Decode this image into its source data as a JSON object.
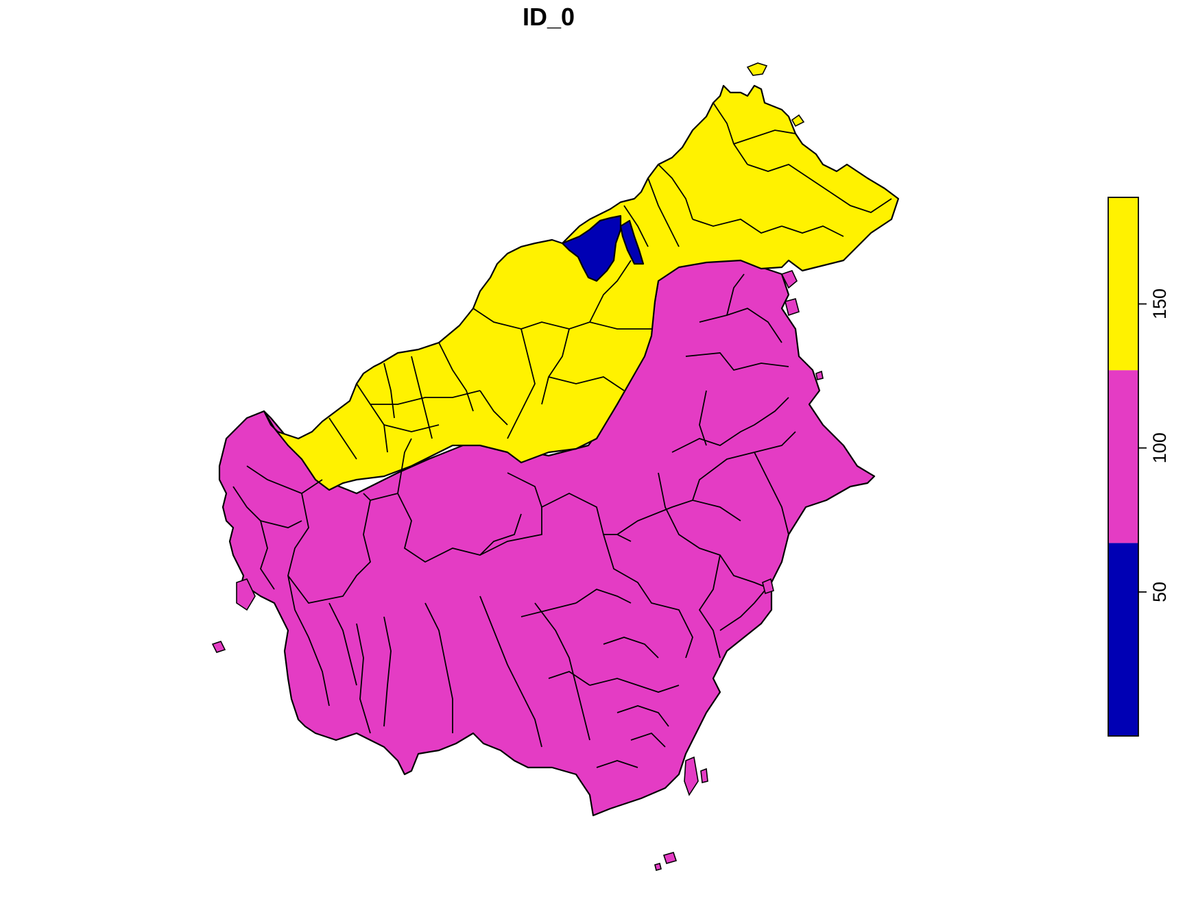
{
  "title": "ID_0",
  "legend": {
    "ticks": [
      {
        "value": 50,
        "label": "50"
      },
      {
        "value": 100,
        "label": "100"
      },
      {
        "value": 150,
        "label": "150"
      }
    ],
    "range": [
      0,
      187
    ],
    "bins": [
      {
        "from": 0,
        "to": 67,
        "color": "#0000b4"
      },
      {
        "from": 67,
        "to": 127,
        "color": "#e43cc4"
      },
      {
        "from": 127,
        "to": 187,
        "color": "#fff200"
      }
    ]
  },
  "regions": [
    {
      "name": "south-polygon",
      "value": 100,
      "color": "#e43cc4"
    },
    {
      "name": "north-polygon",
      "value": 160,
      "color": "#fff200"
    },
    {
      "name": "enclave-polygon",
      "value": 30,
      "color": "#0000b4"
    }
  ]
}
